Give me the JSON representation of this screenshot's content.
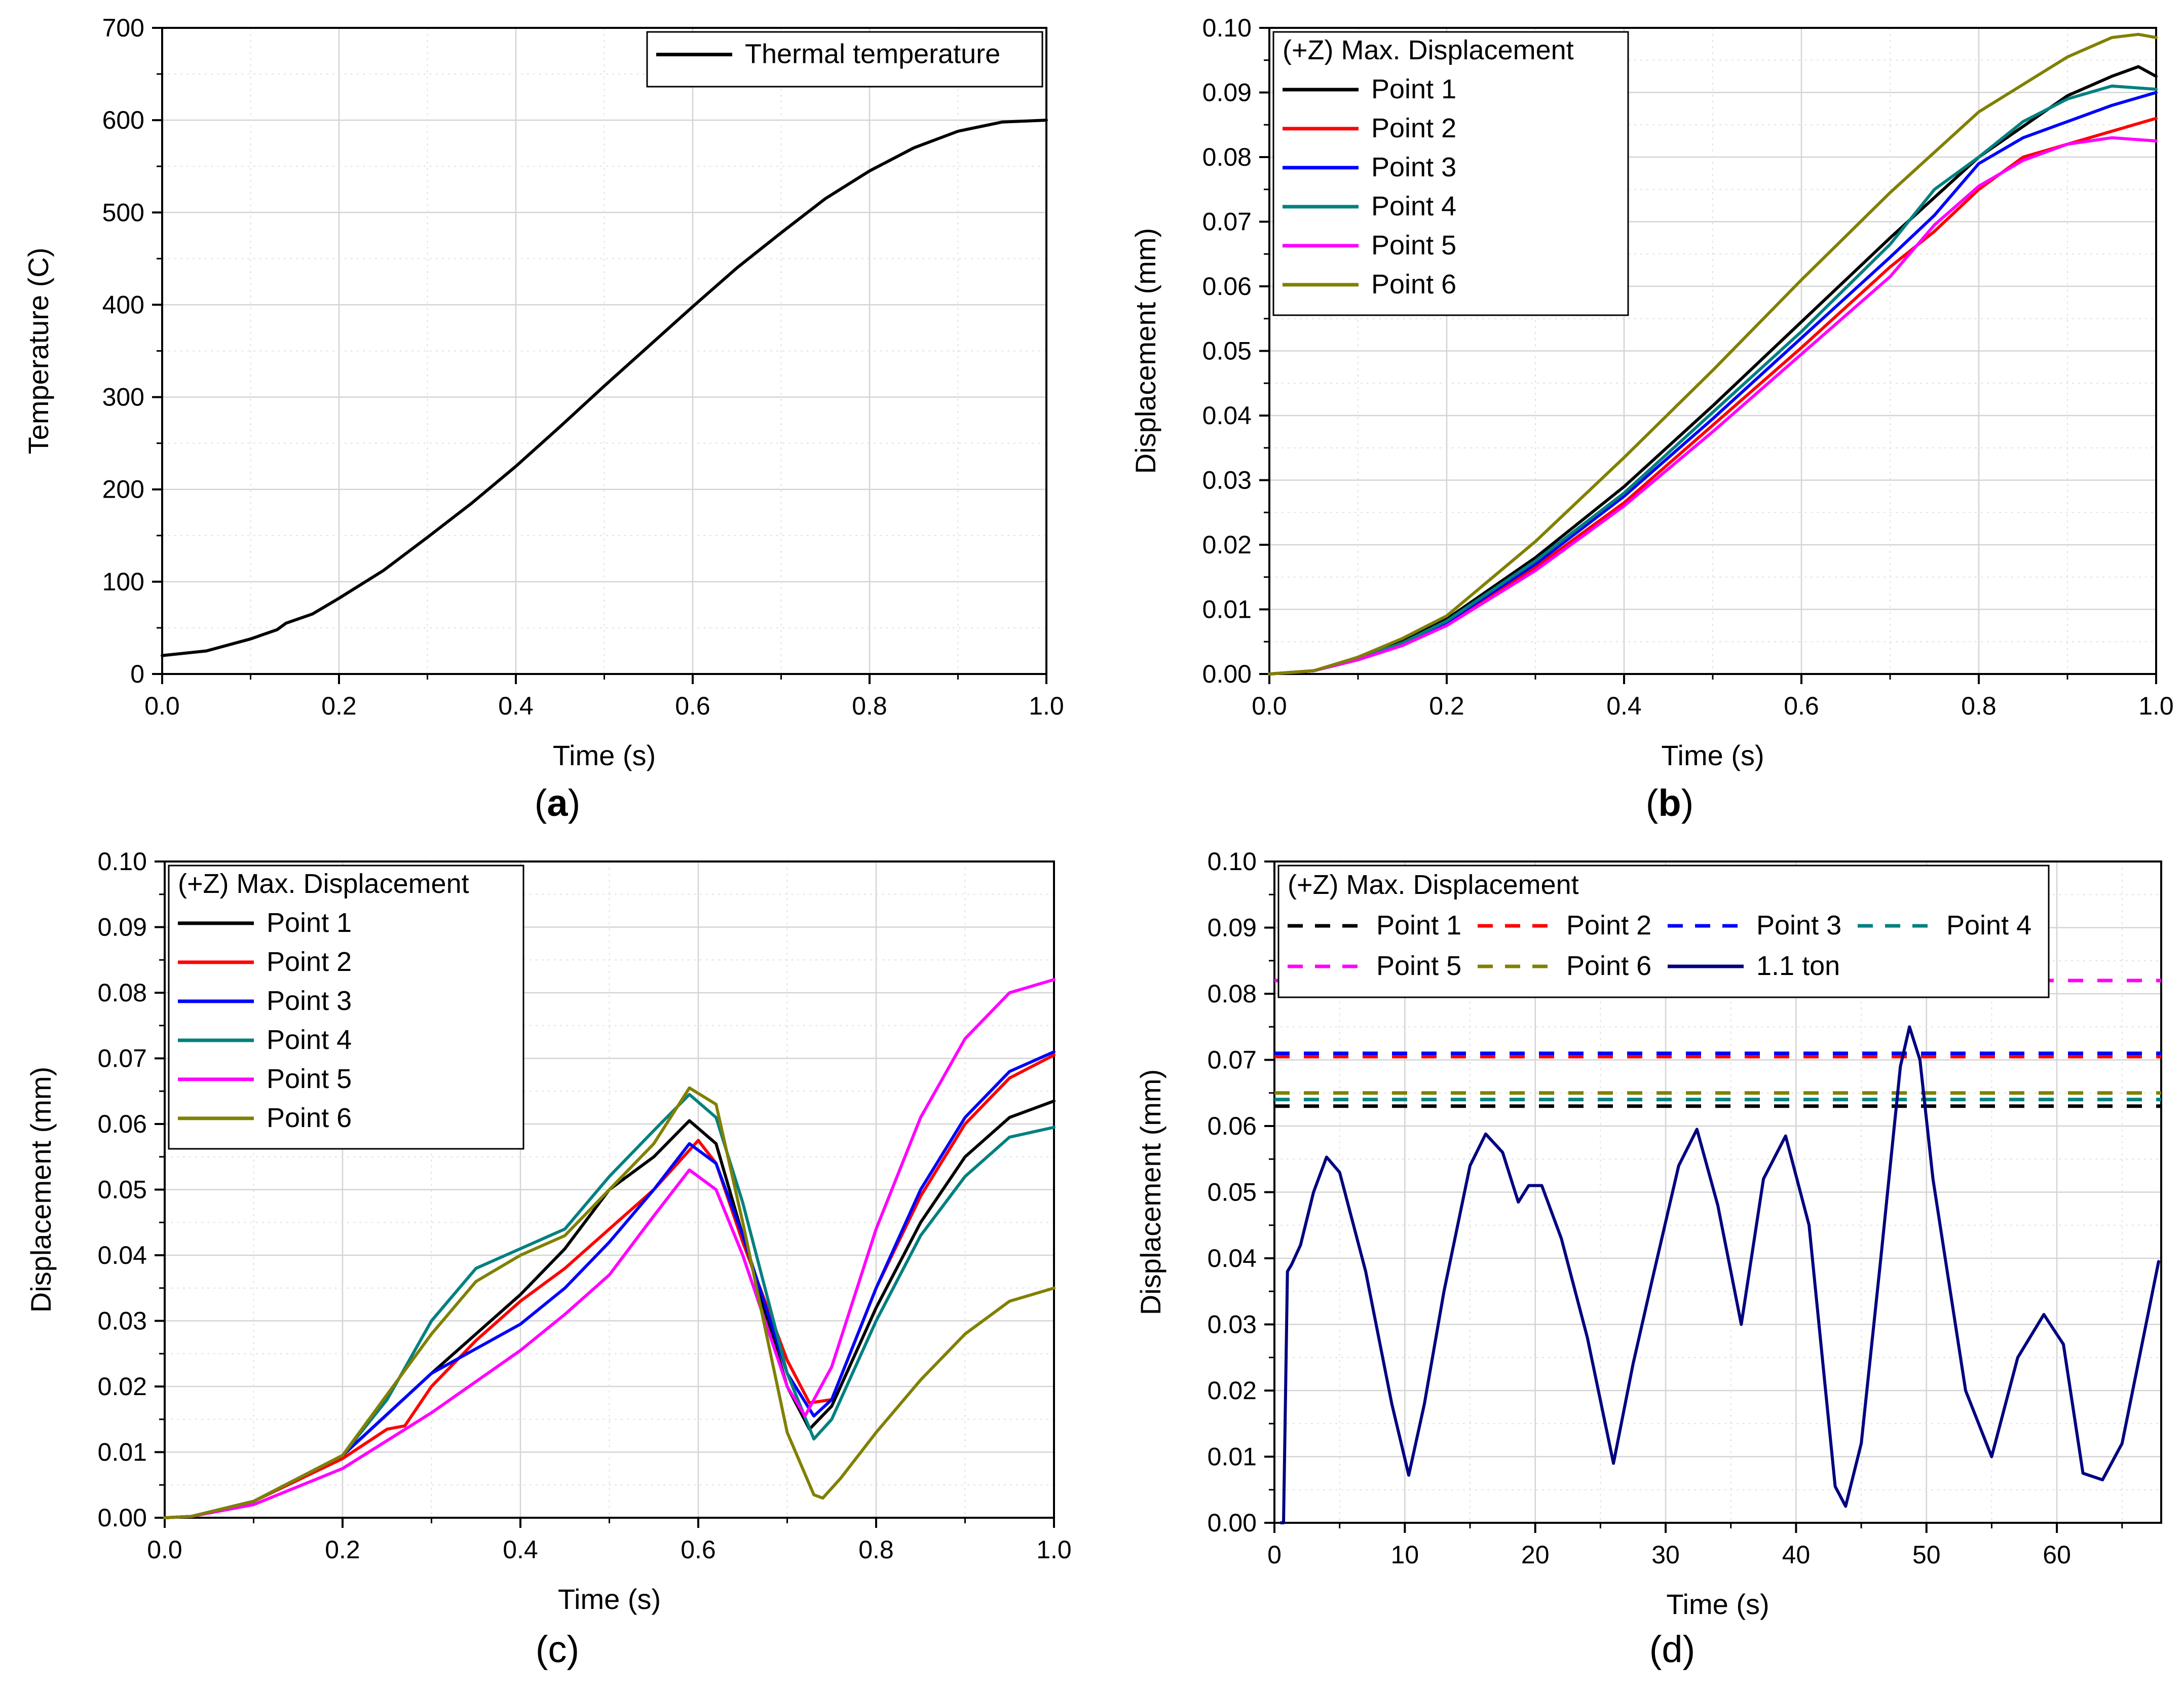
{
  "chart_data": [
    {
      "id": "a",
      "panel_label": "a",
      "type": "line",
      "xlabel": "Time (s)",
      "ylabel": "Temperature (C)",
      "xlim": [
        0,
        1.0
      ],
      "ylim": [
        0,
        700
      ],
      "xticks": [
        "0.0",
        "0.2",
        "0.4",
        "0.6",
        "0.8",
        "1.0"
      ],
      "yticks": [
        "0",
        "100",
        "200",
        "300",
        "400",
        "500",
        "600",
        "700"
      ],
      "grid": true,
      "legend": {
        "position": "top-right",
        "title": "",
        "columns": 1
      },
      "series": [
        {
          "name": "Thermal temperature",
          "color": "#000000",
          "dash": false,
          "x": [
            0,
            0.05,
            0.1,
            0.13,
            0.14,
            0.17,
            0.2,
            0.25,
            0.3,
            0.35,
            0.4,
            0.45,
            0.5,
            0.55,
            0.6,
            0.65,
            0.7,
            0.75,
            0.8,
            0.85,
            0.9,
            0.95,
            1.0
          ],
          "y": [
            20,
            25,
            38,
            48,
            55,
            65,
            82,
            112,
            148,
            185,
            225,
            268,
            312,
            355,
            398,
            440,
            478,
            515,
            545,
            570,
            588,
            598,
            600
          ]
        }
      ]
    },
    {
      "id": "b",
      "panel_label": "b",
      "type": "line",
      "xlabel": "Time (s)",
      "ylabel": "Displacement (mm)",
      "xlim": [
        0,
        1.0
      ],
      "ylim": [
        0,
        0.1
      ],
      "xticks": [
        "0.0",
        "0.2",
        "0.4",
        "0.6",
        "0.8",
        "1.0"
      ],
      "yticks": [
        "0.00",
        "0.01",
        "0.02",
        "0.03",
        "0.04",
        "0.05",
        "0.06",
        "0.07",
        "0.08",
        "0.09",
        "0.10"
      ],
      "grid": true,
      "legend": {
        "position": "top-left",
        "title": "(+Z) Max. Displacement",
        "columns": 1
      },
      "series": [
        {
          "name": "Point 1",
          "color": "#000000",
          "dash": false,
          "x": [
            0,
            0.05,
            0.1,
            0.15,
            0.2,
            0.3,
            0.4,
            0.5,
            0.6,
            0.7,
            0.8,
            0.9,
            0.95,
            0.98,
            1.0
          ],
          "y": [
            0,
            0.0005,
            0.0025,
            0.005,
            0.0085,
            0.018,
            0.029,
            0.0415,
            0.0545,
            0.0675,
            0.08,
            0.0895,
            0.0925,
            0.094,
            0.0925
          ]
        },
        {
          "name": "Point 2",
          "color": "#ff0000",
          "dash": false,
          "x": [
            0,
            0.05,
            0.1,
            0.15,
            0.2,
            0.3,
            0.4,
            0.5,
            0.6,
            0.7,
            0.75,
            0.8,
            0.85,
            0.9,
            0.95,
            1.0
          ],
          "y": [
            0,
            0.0005,
            0.0022,
            0.0045,
            0.0078,
            0.0165,
            0.0265,
            0.0385,
            0.0505,
            0.063,
            0.0685,
            0.075,
            0.08,
            0.082,
            0.084,
            0.086
          ]
        },
        {
          "name": "Point 3",
          "color": "#0000ff",
          "dash": false,
          "x": [
            0,
            0.05,
            0.1,
            0.15,
            0.2,
            0.3,
            0.4,
            0.5,
            0.6,
            0.7,
            0.75,
            0.8,
            0.85,
            0.9,
            0.95,
            1.0
          ],
          "y": [
            0,
            0.0005,
            0.0023,
            0.0047,
            0.008,
            0.017,
            0.0275,
            0.0395,
            0.052,
            0.0645,
            0.071,
            0.079,
            0.083,
            0.0855,
            0.088,
            0.09
          ]
        },
        {
          "name": "Point 4",
          "color": "#008080",
          "dash": false,
          "x": [
            0,
            0.05,
            0.1,
            0.15,
            0.2,
            0.3,
            0.4,
            0.5,
            0.6,
            0.7,
            0.75,
            0.8,
            0.85,
            0.9,
            0.95,
            1.0
          ],
          "y": [
            0,
            0.0005,
            0.0024,
            0.0048,
            0.0082,
            0.0175,
            0.028,
            0.0405,
            0.053,
            0.0665,
            0.075,
            0.08,
            0.0855,
            0.089,
            0.091,
            0.0905
          ]
        },
        {
          "name": "Point 5",
          "color": "#ff00ff",
          "dash": false,
          "x": [
            0,
            0.05,
            0.1,
            0.15,
            0.2,
            0.3,
            0.4,
            0.5,
            0.6,
            0.7,
            0.75,
            0.8,
            0.85,
            0.9,
            0.95,
            1.0
          ],
          "y": [
            0,
            0.0005,
            0.0022,
            0.0044,
            0.0075,
            0.016,
            0.026,
            0.0375,
            0.0495,
            0.0615,
            0.0695,
            0.0755,
            0.0795,
            0.082,
            0.083,
            0.0825
          ]
        },
        {
          "name": "Point 6",
          "color": "#808000",
          "dash": false,
          "x": [
            0,
            0.05,
            0.1,
            0.15,
            0.2,
            0.3,
            0.4,
            0.5,
            0.6,
            0.7,
            0.8,
            0.9,
            0.95,
            0.98,
            1.0
          ],
          "y": [
            0,
            0.0005,
            0.0026,
            0.0055,
            0.009,
            0.0205,
            0.0335,
            0.047,
            0.061,
            0.0745,
            0.087,
            0.0955,
            0.0985,
            0.099,
            0.0985
          ]
        }
      ]
    },
    {
      "id": "c",
      "panel_label": "c",
      "type": "line",
      "xlabel": "Time (s)",
      "ylabel": "Displacement (mm)",
      "xlim": [
        0,
        1.0
      ],
      "ylim": [
        0,
        0.1
      ],
      "xticks": [
        "0.0",
        "0.2",
        "0.4",
        "0.6",
        "0.8",
        "1.0"
      ],
      "yticks": [
        "0.00",
        "0.01",
        "0.02",
        "0.03",
        "0.04",
        "0.05",
        "0.06",
        "0.07",
        "0.08",
        "0.09",
        "0.10"
      ],
      "grid": true,
      "legend": {
        "position": "top-left",
        "title": "(+Z) Max. Displacement",
        "columns": 1
      },
      "series": [
        {
          "name": "Point 1",
          "color": "#000000",
          "dash": false,
          "x": [
            0,
            0.03,
            0.1,
            0.2,
            0.3,
            0.4,
            0.45,
            0.5,
            0.55,
            0.59,
            0.62,
            0.65,
            0.7,
            0.725,
            0.75,
            0.8,
            0.85,
            0.9,
            0.95,
            1.0
          ],
          "y": [
            0,
            0.0002,
            0.0025,
            0.0095,
            0.022,
            0.034,
            0.041,
            0.05,
            0.055,
            0.0605,
            0.057,
            0.043,
            0.02,
            0.0135,
            0.017,
            0.032,
            0.045,
            0.055,
            0.061,
            0.0635
          ]
        },
        {
          "name": "Point 2",
          "color": "#ff0000",
          "dash": false,
          "x": [
            0,
            0.03,
            0.1,
            0.2,
            0.25,
            0.27,
            0.3,
            0.35,
            0.4,
            0.45,
            0.5,
            0.55,
            0.6,
            0.62,
            0.65,
            0.7,
            0.725,
            0.75,
            0.8,
            0.85,
            0.9,
            0.95,
            1.0
          ],
          "y": [
            0,
            0.0002,
            0.0025,
            0.009,
            0.0135,
            0.014,
            0.02,
            0.027,
            0.033,
            0.038,
            0.044,
            0.05,
            0.0575,
            0.054,
            0.042,
            0.024,
            0.0175,
            0.018,
            0.035,
            0.049,
            0.06,
            0.067,
            0.0705
          ]
        },
        {
          "name": "Point 3",
          "color": "#0000ff",
          "dash": false,
          "x": [
            0,
            0.03,
            0.1,
            0.2,
            0.3,
            0.4,
            0.45,
            0.5,
            0.55,
            0.59,
            0.62,
            0.65,
            0.7,
            0.73,
            0.75,
            0.8,
            0.85,
            0.9,
            0.95,
            1.0
          ],
          "y": [
            0,
            0.0002,
            0.0025,
            0.0095,
            0.022,
            0.0295,
            0.035,
            0.042,
            0.05,
            0.057,
            0.054,
            0.043,
            0.022,
            0.0155,
            0.018,
            0.035,
            0.05,
            0.061,
            0.068,
            0.071
          ]
        },
        {
          "name": "Point 4",
          "color": "#008080",
          "dash": false,
          "x": [
            0,
            0.03,
            0.1,
            0.2,
            0.25,
            0.3,
            0.35,
            0.4,
            0.45,
            0.5,
            0.55,
            0.59,
            0.62,
            0.65,
            0.7,
            0.73,
            0.75,
            0.8,
            0.85,
            0.9,
            0.95,
            1.0
          ],
          "y": [
            0,
            0.0002,
            0.0025,
            0.0095,
            0.018,
            0.03,
            0.038,
            0.041,
            0.044,
            0.052,
            0.059,
            0.0645,
            0.061,
            0.048,
            0.022,
            0.012,
            0.015,
            0.03,
            0.043,
            0.052,
            0.058,
            0.0595
          ]
        },
        {
          "name": "Point 5",
          "color": "#ff00ff",
          "dash": false,
          "x": [
            0,
            0.03,
            0.1,
            0.2,
            0.3,
            0.4,
            0.45,
            0.5,
            0.55,
            0.59,
            0.62,
            0.65,
            0.7,
            0.72,
            0.75,
            0.8,
            0.85,
            0.9,
            0.95,
            1.0
          ],
          "y": [
            0,
            0.0002,
            0.002,
            0.0075,
            0.016,
            0.0255,
            0.031,
            0.037,
            0.046,
            0.053,
            0.05,
            0.04,
            0.02,
            0.0155,
            0.023,
            0.044,
            0.061,
            0.073,
            0.08,
            0.082
          ]
        },
        {
          "name": "Point 6",
          "color": "#808000",
          "dash": false,
          "x": [
            0,
            0.03,
            0.1,
            0.2,
            0.3,
            0.35,
            0.4,
            0.45,
            0.5,
            0.55,
            0.59,
            0.62,
            0.65,
            0.7,
            0.73,
            0.74,
            0.76,
            0.8,
            0.85,
            0.9,
            0.95,
            1.0
          ],
          "y": [
            0,
            0.0002,
            0.0025,
            0.0095,
            0.028,
            0.036,
            0.04,
            0.043,
            0.05,
            0.057,
            0.0655,
            0.063,
            0.045,
            0.013,
            0.0035,
            0.003,
            0.006,
            0.013,
            0.021,
            0.028,
            0.033,
            0.035
          ]
        }
      ]
    },
    {
      "id": "d",
      "panel_label": "d",
      "type": "line",
      "xlabel": "Time (s)",
      "ylabel": "Displacement (mm)",
      "xlim": [
        0,
        68
      ],
      "ylim": [
        0,
        0.1
      ],
      "xticks": [
        "0",
        "10",
        "20",
        "30",
        "40",
        "50",
        "60"
      ],
      "yticks": [
        "0.00",
        "0.01",
        "0.02",
        "0.03",
        "0.04",
        "0.05",
        "0.06",
        "0.07",
        "0.08",
        "0.09",
        "0.10"
      ],
      "grid": true,
      "legend": {
        "position": "top-left",
        "title": "(+Z) Max. Displacement",
        "columns": 4
      },
      "series": [
        {
          "name": "Point 1",
          "color": "#000000",
          "dash": true,
          "x": [
            0,
            68
          ],
          "y": [
            0.063,
            0.063
          ]
        },
        {
          "name": "Point 2",
          "color": "#ff0000",
          "dash": true,
          "x": [
            0,
            68
          ],
          "y": [
            0.0705,
            0.0705
          ]
        },
        {
          "name": "Point 3",
          "color": "#0000ff",
          "dash": true,
          "x": [
            0,
            68
          ],
          "y": [
            0.071,
            0.071
          ]
        },
        {
          "name": "Point 4",
          "color": "#008080",
          "dash": true,
          "x": [
            0,
            68
          ],
          "y": [
            0.064,
            0.064
          ]
        },
        {
          "name": "Point 5",
          "color": "#ff00ff",
          "dash": true,
          "x": [
            0,
            68
          ],
          "y": [
            0.082,
            0.082
          ]
        },
        {
          "name": "Point 6",
          "color": "#808000",
          "dash": true,
          "x": [
            0,
            68
          ],
          "y": [
            0.065,
            0.065
          ]
        },
        {
          "name": "1.1 ton",
          "color": "#000080",
          "dash": false,
          "x": [
            0.5,
            0.7,
            1.0,
            1.3,
            2.0,
            3.0,
            4.0,
            5.0,
            7.0,
            9.0,
            10.3,
            11.5,
            13.0,
            15.0,
            16.2,
            17.5,
            18.7,
            19.5,
            20.5,
            22.0,
            24.0,
            26.0,
            27.5,
            29.0,
            31.0,
            32.4,
            34.0,
            35.8,
            37.5,
            39.2,
            41.0,
            43.0,
            43.8,
            45.0,
            46.5,
            48.0,
            48.7,
            49.5,
            50.5,
            53.0,
            55.0,
            57.0,
            59.0,
            60.5,
            62.0,
            63.5,
            65.0,
            67.8
          ],
          "y": [
            0,
            0.0,
            0.038,
            0.039,
            0.042,
            0.05,
            0.0553,
            0.053,
            0.038,
            0.018,
            0.0072,
            0.018,
            0.035,
            0.054,
            0.0588,
            0.056,
            0.0485,
            0.051,
            0.051,
            0.043,
            0.028,
            0.009,
            0.024,
            0.037,
            0.054,
            0.0595,
            0.048,
            0.03,
            0.052,
            0.0585,
            0.045,
            0.0055,
            0.0025,
            0.012,
            0.04,
            0.069,
            0.075,
            0.07,
            0.052,
            0.02,
            0.01,
            0.025,
            0.0315,
            0.027,
            0.0075,
            0.0065,
            0.012,
            0.0395
          ]
        }
      ]
    }
  ]
}
